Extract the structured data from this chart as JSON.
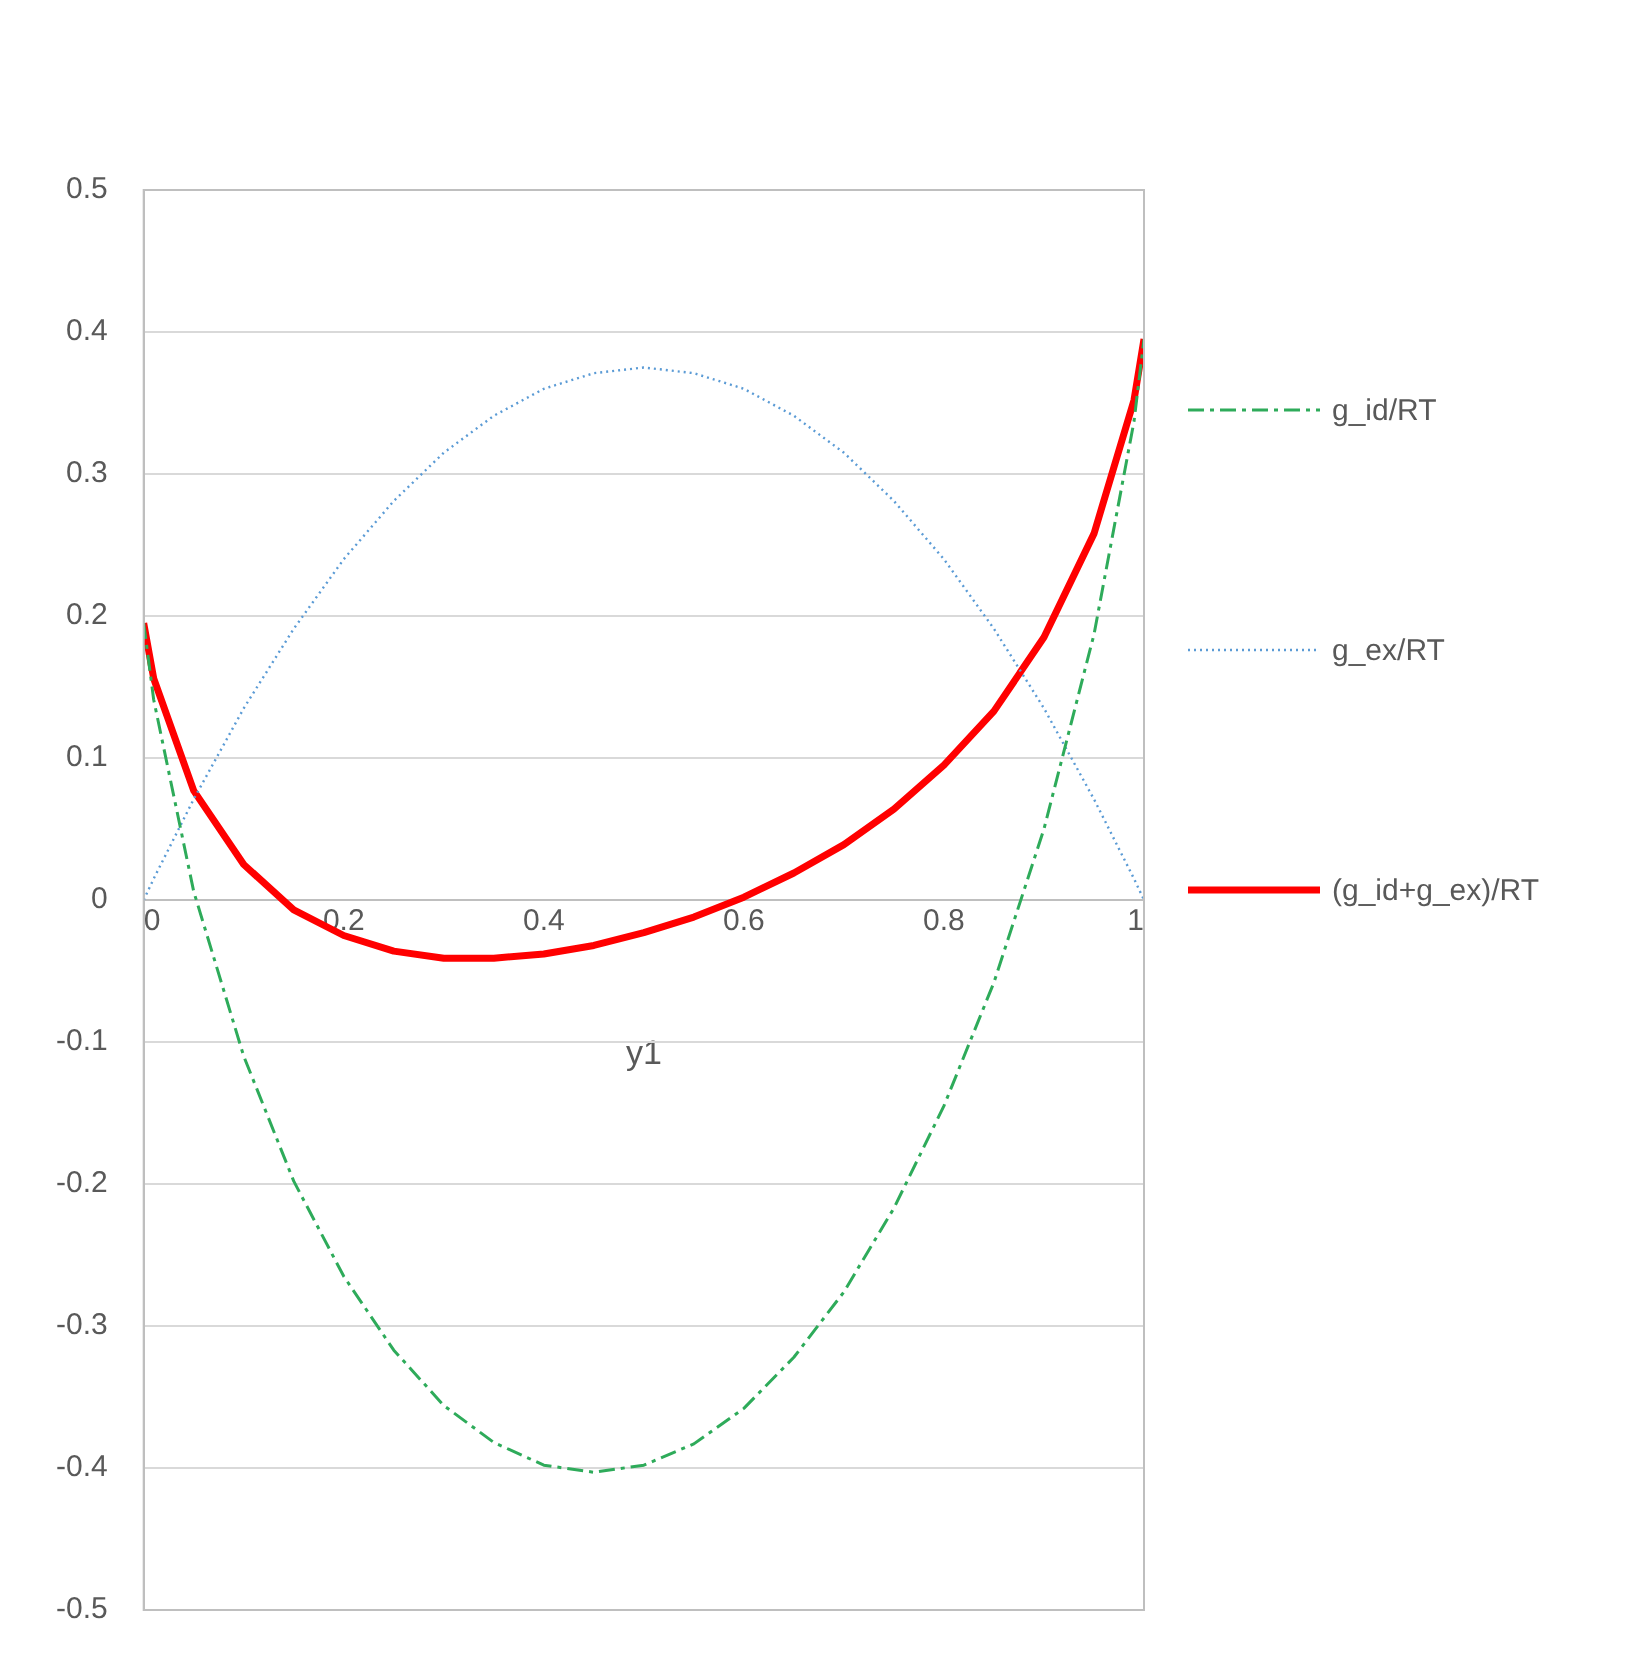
{
  "chart_data": {
    "type": "line",
    "xlabel": "y1",
    "xlim": [
      0,
      1
    ],
    "xticks": [
      0,
      0.2,
      0.4,
      0.6,
      0.8,
      1
    ],
    "ylim": [
      -0.5,
      0.5
    ],
    "yticks": [
      -0.5,
      -0.4,
      -0.3,
      -0.2,
      -0.1,
      0,
      0.1,
      0.2,
      0.3,
      0.4,
      0.5
    ],
    "grid": "y",
    "legend": "right",
    "marker": "none",
    "x": [
      0,
      0.01,
      0.05,
      0.1,
      0.15,
      0.2,
      0.25,
      0.3,
      0.35,
      0.4,
      0.45,
      0.5,
      0.55,
      0.6,
      0.65,
      0.7,
      0.75,
      0.8,
      0.85,
      0.9,
      0.95,
      0.99,
      1
    ],
    "series": [
      {
        "name": "g_id/RT",
        "color": "#2eab5a",
        "line_style": "dashed",
        "values": [
          0.195,
          0.141,
          0.006,
          -0.11,
          -0.198,
          -0.265,
          -0.317,
          -0.356,
          -0.382,
          -0.398,
          -0.403,
          -0.398,
          -0.383,
          -0.358,
          -0.322,
          -0.276,
          -0.217,
          -0.145,
          -0.058,
          0.05,
          0.187,
          0.337,
          0.395
        ]
      },
      {
        "name": "g_ex/RT",
        "color": "#5b9bd5",
        "line_style": "dotted",
        "values": [
          0,
          0.015,
          0.071,
          0.135,
          0.191,
          0.24,
          0.281,
          0.315,
          0.341,
          0.36,
          0.371,
          0.375,
          0.371,
          0.36,
          0.341,
          0.315,
          0.281,
          0.24,
          0.191,
          0.135,
          0.071,
          0.015,
          0
        ]
      },
      {
        "name": "(g_id+g_ex)/RT",
        "color": "#ff0000",
        "line_style": "solid",
        "values": [
          0.195,
          0.156,
          0.077,
          0.025,
          -0.007,
          -0.025,
          -0.036,
          -0.041,
          -0.041,
          -0.038,
          -0.032,
          -0.023,
          -0.012,
          0.002,
          0.019,
          0.039,
          0.064,
          0.095,
          0.133,
          0.185,
          0.258,
          0.352,
          0.395
        ]
      }
    ]
  }
}
